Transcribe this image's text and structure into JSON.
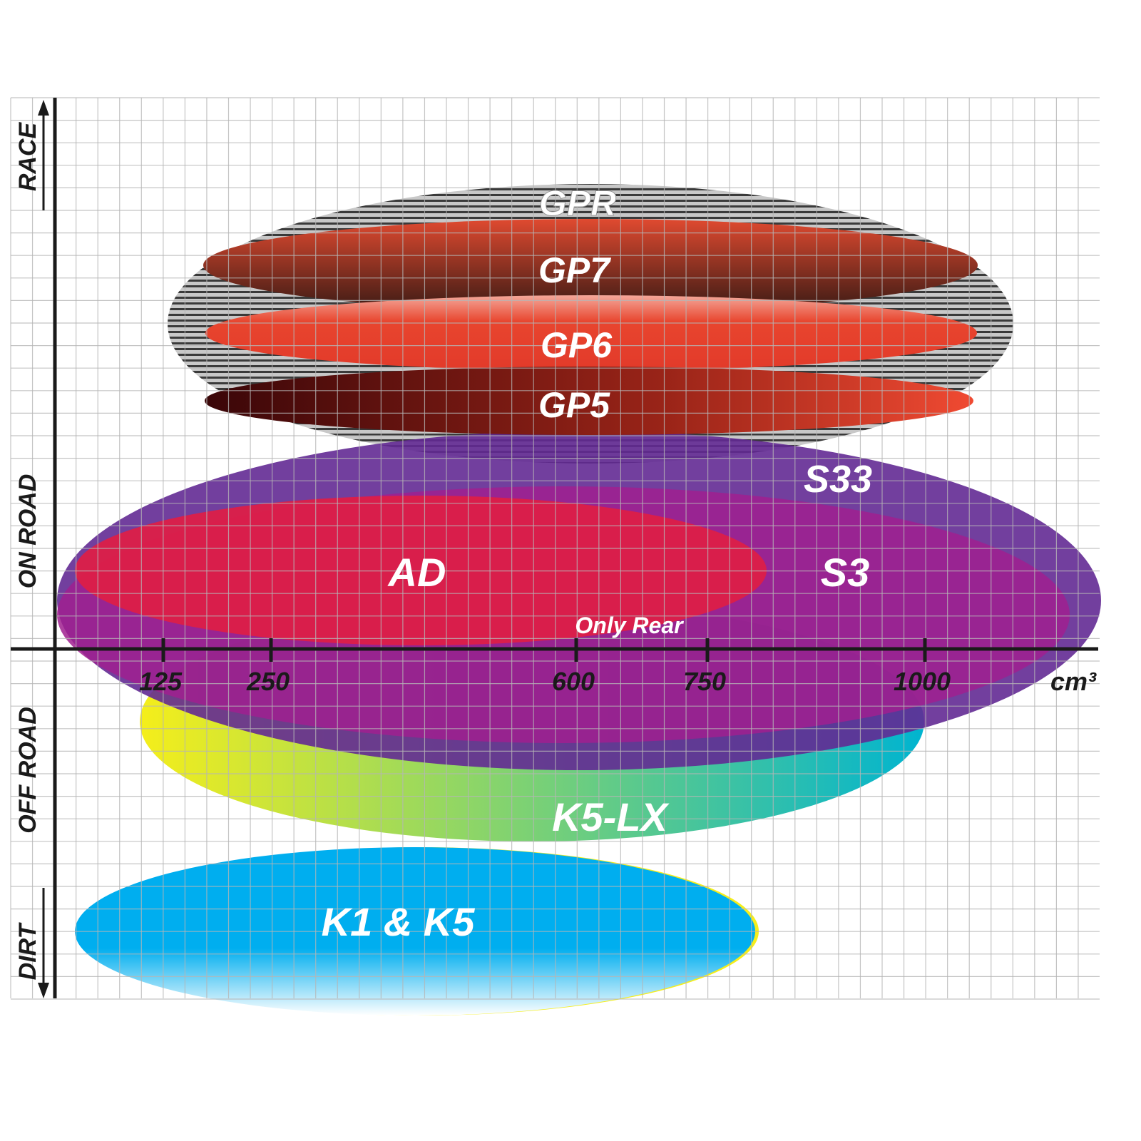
{
  "y_axis_labels": {
    "top": "RACE",
    "upper": "ON ROAD",
    "lower": "OFF ROAD",
    "bottom": "DIRT"
  },
  "x_axis": {
    "unit": "cm³",
    "ticks": [
      "125",
      "250",
      "600",
      "750",
      "1000"
    ]
  },
  "tires": {
    "gpr": "GPR",
    "gp7": "GP7",
    "gp6": "GP6",
    "gp5": "GP5",
    "s33": "S33",
    "s3": "S3",
    "ad": "AD",
    "only_rear": "Only Rear",
    "k5lx": "K5-LX",
    "k1k5": "K1 & K5"
  },
  "colors": {
    "gpr": "#9a9a9a",
    "s33": "#632a93",
    "s3": "#a0208f",
    "ad": "#dc1f48",
    "k1k5": "#00aeef",
    "k5lx_left": "#f5ee1a",
    "k5lx_right": "#00b4d0",
    "grid": "#b5b5b5"
  }
}
